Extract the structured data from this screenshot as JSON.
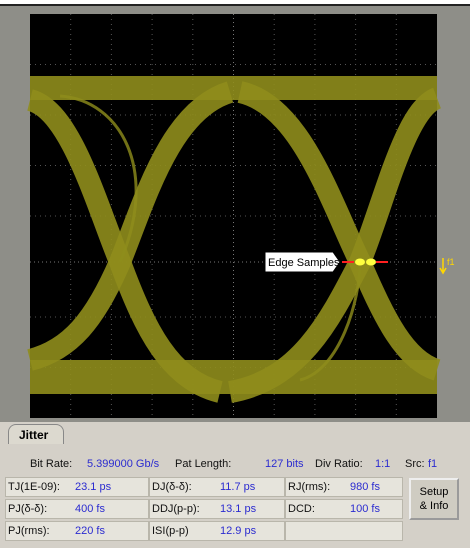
{
  "display": {
    "annotation": "Edge Samples",
    "marker_label": "f1"
  },
  "panel": {
    "tab": "Jitter",
    "header": [
      {
        "label": "Bit Rate:",
        "value": "5.399000 Gb/s"
      },
      {
        "label": "Pat Length:",
        "value": "127 bits"
      },
      {
        "label": "Div Ratio:",
        "value": "1:1"
      },
      {
        "label": "Src:",
        "value": "f1"
      }
    ],
    "rows": [
      [
        {
          "label": "TJ(1E-09):",
          "value": "23.1 ps"
        },
        {
          "label": "DJ(δ-δ):",
          "value": "11.7 ps"
        },
        {
          "label": "RJ(rms):",
          "value": "980 fs"
        }
      ],
      [
        {
          "label": "PJ(δ-δ):",
          "value": "400 fs"
        },
        {
          "label": "DDJ(p-p):",
          "value": "13.1 ps"
        },
        {
          "label": "DCD:",
          "value": "100 fs"
        }
      ],
      [
        {
          "label": "PJ(rms):",
          "value": "220 fs"
        },
        {
          "label": "ISI(p-p)",
          "value": "12.9 ps"
        }
      ]
    ],
    "button": "Setup & Info"
  }
}
